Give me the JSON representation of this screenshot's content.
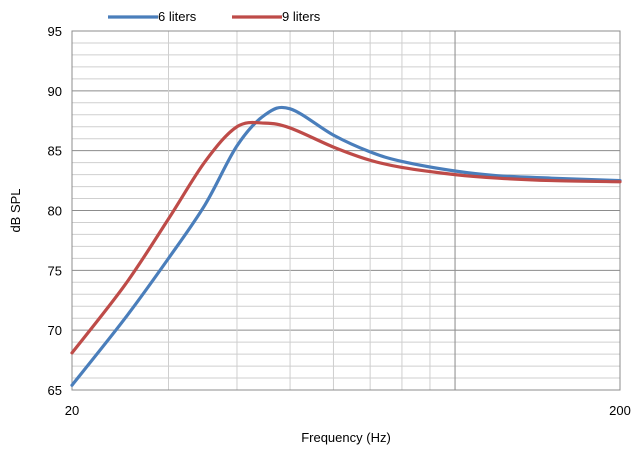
{
  "chart_data": {
    "type": "line",
    "title": "",
    "xlabel": "Frequency (Hz)",
    "ylabel": "dB SPL",
    "x_scale": "log",
    "xlim": [
      20,
      200
    ],
    "ylim": [
      65,
      95
    ],
    "x_tick_labels": [
      {
        "value": 20,
        "label": "20"
      },
      {
        "value": 200,
        "label": "200"
      }
    ],
    "y_ticks": [
      65,
      70,
      75,
      80,
      85,
      90,
      95
    ],
    "grid": true,
    "legend_position": "top-left",
    "series": [
      {
        "name": "6 liters",
        "color": "#4a7ebb",
        "x": [
          20,
          25,
          30,
          35,
          40,
          45,
          50,
          60,
          70,
          80,
          100,
          120,
          150,
          200
        ],
        "y": [
          65.4,
          71.0,
          76.0,
          80.5,
          85.4,
          88.0,
          88.5,
          86.3,
          84.9,
          84.1,
          83.3,
          82.9,
          82.7,
          82.5
        ]
      },
      {
        "name": "9 liters",
        "color": "#be4b48",
        "x": [
          20,
          25,
          30,
          35,
          40,
          45,
          50,
          60,
          70,
          80,
          100,
          120,
          150,
          200
        ],
        "y": [
          68.1,
          73.8,
          79.3,
          84.1,
          87.0,
          87.3,
          86.9,
          85.3,
          84.2,
          83.6,
          83.0,
          82.7,
          82.5,
          82.4
        ]
      }
    ]
  }
}
